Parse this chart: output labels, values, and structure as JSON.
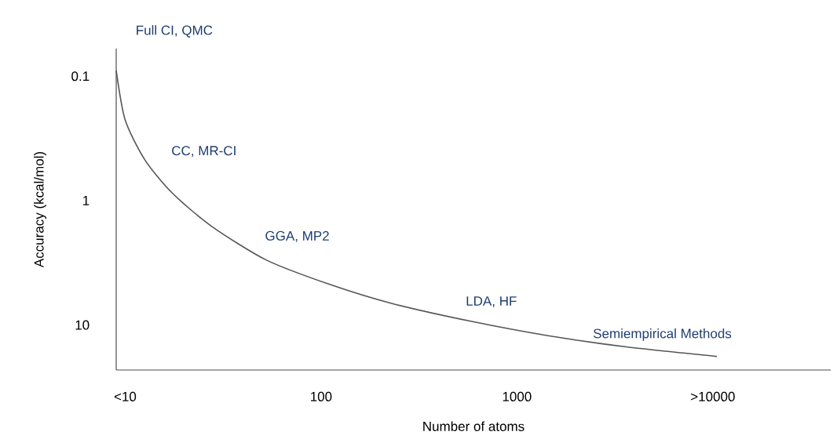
{
  "chart_data": {
    "type": "line",
    "xlabel": "Number of atoms",
    "ylabel": "Accuracy (kcal/mol)",
    "log": "xy",
    "x": [
      9,
      10,
      12.6,
      17.4,
      27.5,
      52.5,
      110,
      229,
      575,
      1445,
      3630,
      10500
    ],
    "series": [
      {
        "color": "#555555",
        "values": [
          0.09,
          0.225,
          0.47,
          0.87,
          1.6,
          3.0,
          4.7,
          6.7,
          9.3,
          12.2,
          15,
          17.9
        ]
      }
    ],
    "xlim": [
      9,
      40000
    ],
    "ylim": [
      23,
      0.06
    ],
    "xticks": [
      {
        "value": 10,
        "label": "<10"
      },
      100,
      1000,
      {
        "value": 10000,
        "label": ">10000"
      }
    ],
    "yticks": [
      0.1,
      1,
      10
    ],
    "grid": false,
    "marker": "none",
    "line_style": "solid",
    "annotations": [
      "Full CI, QMC",
      "CC, MR-CI",
      "GGA, MP2",
      "LDA, HF",
      "Semiempirical Methods"
    ]
  }
}
